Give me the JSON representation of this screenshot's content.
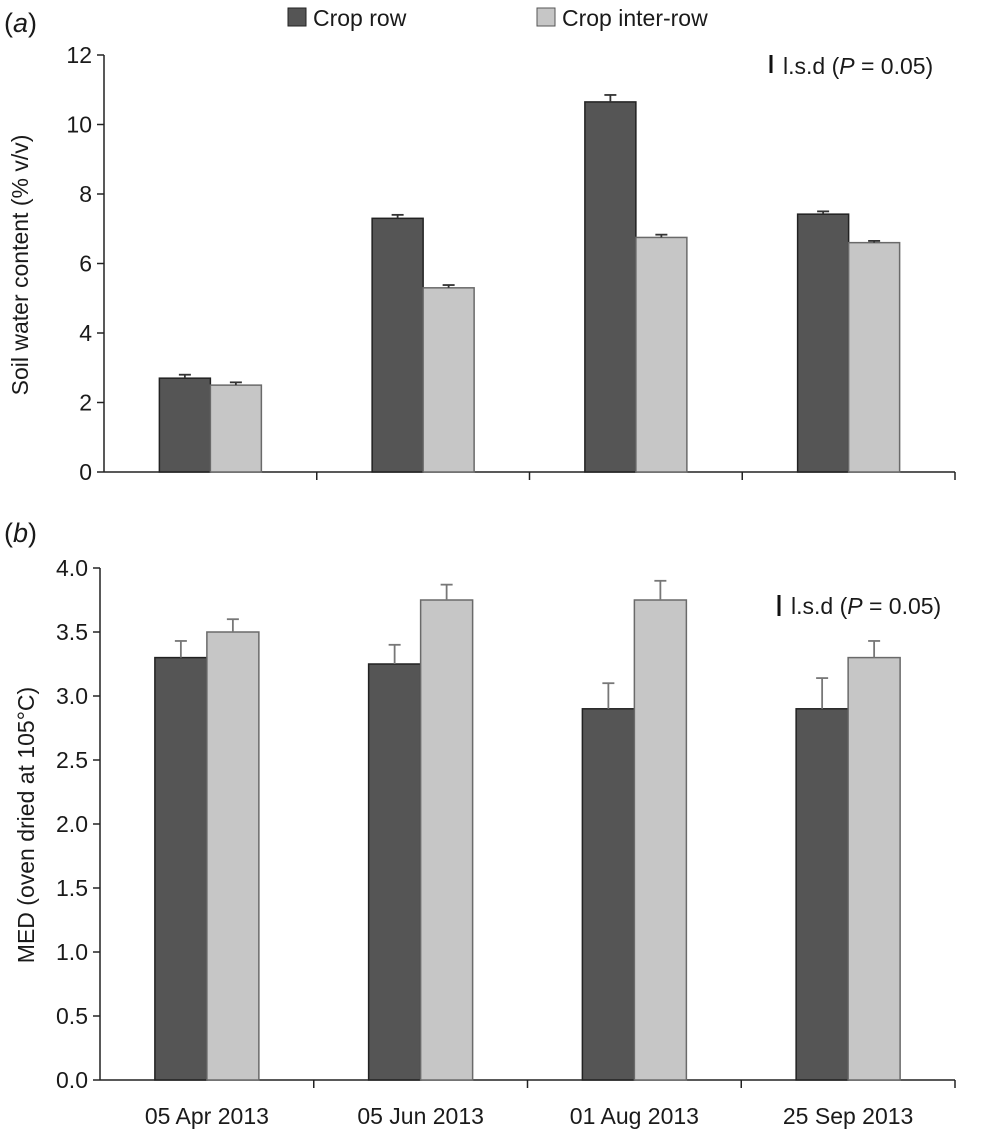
{
  "legend": {
    "items": [
      {
        "label": "Crop row",
        "color": "#555555"
      },
      {
        "label": "Crop inter-row",
        "color": "#c6c6c6"
      }
    ]
  },
  "lsd": {
    "prefix": "l.s.d (",
    "p_letter": "P",
    "suffix": " = 0.05)"
  },
  "chart_data": [
    {
      "type": "bar",
      "panel_label": "(a)",
      "panel_letter": "a",
      "ylabel": "Soil water content (% v/v)",
      "xlabel": "",
      "ylim": [
        0,
        12
      ],
      "yticks": [
        "0",
        "2",
        "4",
        "6",
        "8",
        "10",
        "12"
      ],
      "categories": [
        "05 Apr 2013",
        "05 Jun 2013",
        "01 Aug 2013",
        "25 Sep 2013"
      ],
      "show_category_labels": false,
      "series": [
        {
          "name": "Crop row",
          "values": [
            2.7,
            7.3,
            10.65,
            7.42
          ],
          "errors": [
            0.1,
            0.1,
            0.2,
            0.08
          ],
          "color": "#555555"
        },
        {
          "name": "Crop inter-row",
          "values": [
            2.5,
            5.3,
            6.75,
            6.6
          ],
          "errors": [
            0.08,
            0.08,
            0.08,
            0.05
          ],
          "color": "#c6c6c6"
        }
      ],
      "grid": false
    },
    {
      "type": "bar",
      "panel_label": "(b)",
      "panel_letter": "b",
      "ylabel": "MED (oven dried at 105°C)",
      "xlabel": "",
      "ylim": [
        0,
        4
      ],
      "yticks": [
        "0.0",
        "0.5",
        "1.0",
        "1.5",
        "2.0",
        "2.5",
        "3.0",
        "3.5",
        "4.0"
      ],
      "categories": [
        "05 Apr 2013",
        "05 Jun 2013",
        "01 Aug 2013",
        "25 Sep 2013"
      ],
      "show_category_labels": true,
      "series": [
        {
          "name": "Crop row",
          "values": [
            3.3,
            3.25,
            2.9,
            2.9
          ],
          "errors": [
            0.13,
            0.15,
            0.2,
            0.24
          ],
          "color": "#555555"
        },
        {
          "name": "Crop inter-row",
          "values": [
            3.5,
            3.75,
            3.75,
            3.3
          ],
          "errors": [
            0.1,
            0.12,
            0.15,
            0.13
          ],
          "color": "#c6c6c6"
        }
      ],
      "grid": false
    }
  ]
}
